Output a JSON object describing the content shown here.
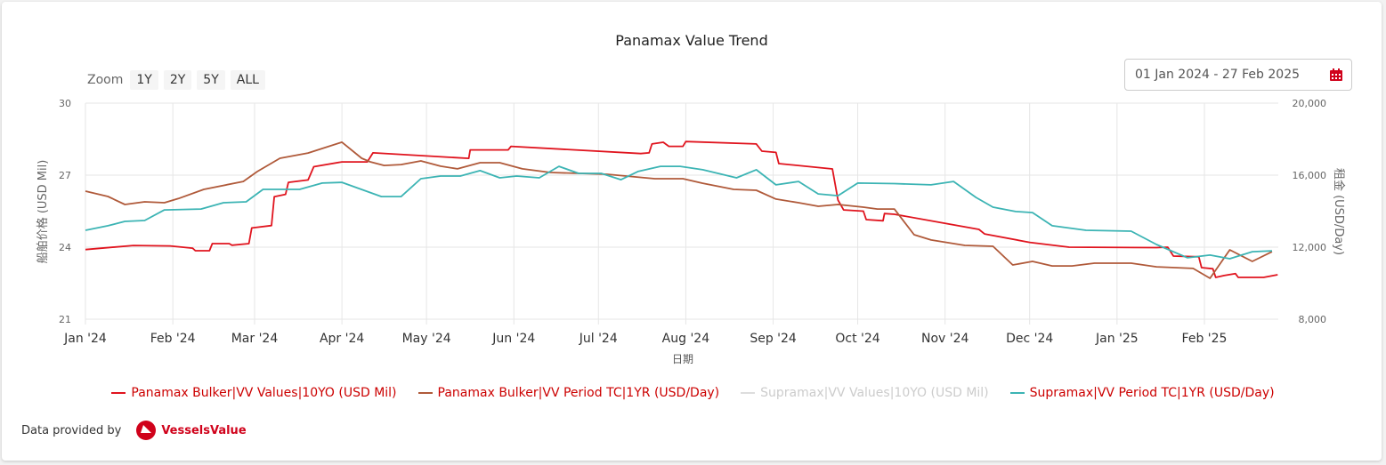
{
  "chart_data": {
    "type": "line",
    "title": "Panamax Value Trend",
    "xlabel": "日期",
    "ylabel_left": "船舶价格 (USD Mil)",
    "ylabel_right": "租金 (USD/Day)",
    "x_unit": "days since 01 Jan 2024",
    "xlim": [
      0,
      424
    ],
    "ylim_left": [
      21,
      30
    ],
    "ylim_right": [
      8000,
      20000
    ],
    "left_ticks": [
      "21",
      "24",
      "27",
      "30"
    ],
    "left_tick_values": [
      21,
      24,
      27,
      30
    ],
    "right_ticks": [
      "8,000",
      "12,000",
      "16,000",
      "20,000"
    ],
    "right_tick_values": [
      8000,
      12000,
      16000,
      20000
    ],
    "x_ticks": [
      "Jan '24",
      "Feb '24",
      "Mar '24",
      "Apr '24",
      "May '24",
      "Jun '24",
      "Jul '24",
      "Aug '24",
      "Sep '24",
      "Oct '24",
      "Nov '24",
      "Dec '24",
      "Jan '25",
      "Feb '25"
    ],
    "x_tick_values": [
      0,
      31,
      60,
      91,
      121,
      152,
      182,
      213,
      244,
      274,
      305,
      335,
      366,
      397
    ],
    "grid": true,
    "legend_position": "bottom",
    "series": [
      {
        "name": "Panamax Bulker|VV Values|10YO (USD Mil)",
        "axis": "left",
        "color": "#e0141e",
        "visible": true,
        "points": [
          [
            0,
            23.9
          ],
          [
            17,
            24.07
          ],
          [
            30,
            24.05
          ],
          [
            38,
            23.96
          ],
          [
            39,
            23.85
          ],
          [
            44,
            23.85
          ],
          [
            45,
            24.15
          ],
          [
            51,
            24.15
          ],
          [
            52,
            24.08
          ],
          [
            58,
            24.15
          ],
          [
            59,
            24.8
          ],
          [
            66,
            24.9
          ],
          [
            67,
            26.1
          ],
          [
            71,
            26.2
          ],
          [
            72,
            26.7
          ],
          [
            79,
            26.8
          ],
          [
            81,
            27.35
          ],
          [
            91,
            27.55
          ],
          [
            100,
            27.55
          ],
          [
            102,
            27.93
          ],
          [
            121,
            27.8
          ],
          [
            136,
            27.7
          ],
          [
            136.5,
            28.05
          ],
          [
            150,
            28.05
          ],
          [
            151,
            28.2
          ],
          [
            197,
            27.9
          ],
          [
            200,
            27.93
          ],
          [
            201,
            28.3
          ],
          [
            205,
            28.37
          ],
          [
            207,
            28.2
          ],
          [
            212,
            28.2
          ],
          [
            213,
            28.4
          ],
          [
            238,
            28.3
          ],
          [
            240,
            28.0
          ],
          [
            245,
            27.95
          ],
          [
            246,
            27.48
          ],
          [
            265,
            27.26
          ],
          [
            267,
            25.96
          ],
          [
            269,
            25.55
          ],
          [
            276,
            25.5
          ],
          [
            277,
            25.15
          ],
          [
            283,
            25.1
          ],
          [
            283.5,
            25.4
          ],
          [
            287,
            25.37
          ],
          [
            317,
            24.74
          ],
          [
            319,
            24.55
          ],
          [
            335,
            24.2
          ],
          [
            349,
            24.0
          ],
          [
            380,
            23.98
          ],
          [
            384,
            24.0
          ],
          [
            386,
            23.63
          ],
          [
            395,
            23.6
          ],
          [
            396,
            23.15
          ],
          [
            400,
            23.1
          ],
          [
            401,
            22.74
          ],
          [
            404,
            22.82
          ],
          [
            408,
            22.9
          ],
          [
            409,
            22.74
          ],
          [
            418,
            22.74
          ],
          [
            423,
            22.85
          ]
        ]
      },
      {
        "name": "Panamax Bulker|VV Period TC|1YR (USD/Day)",
        "axis": "right",
        "color": "#b05a3a",
        "visible": true,
        "points": [
          [
            0,
            15110
          ],
          [
            8,
            14815
          ],
          [
            14,
            14370
          ],
          [
            21,
            14520
          ],
          [
            28,
            14470
          ],
          [
            33,
            14700
          ],
          [
            42,
            15210
          ],
          [
            56,
            15650
          ],
          [
            61,
            16200
          ],
          [
            69,
            16940
          ],
          [
            79,
            17230
          ],
          [
            84,
            17480
          ],
          [
            91,
            17830
          ],
          [
            98,
            16940
          ],
          [
            101,
            16740
          ],
          [
            106,
            16540
          ],
          [
            112,
            16590
          ],
          [
            119,
            16790
          ],
          [
            126,
            16500
          ],
          [
            132,
            16350
          ],
          [
            140,
            16690
          ],
          [
            147,
            16690
          ],
          [
            155,
            16350
          ],
          [
            165,
            16150
          ],
          [
            185,
            16050
          ],
          [
            202,
            15800
          ],
          [
            212,
            15800
          ],
          [
            219,
            15550
          ],
          [
            230,
            15210
          ],
          [
            238,
            15160
          ],
          [
            245,
            14670
          ],
          [
            253,
            14470
          ],
          [
            260,
            14270
          ],
          [
            267,
            14370
          ],
          [
            276,
            14220
          ],
          [
            281,
            14120
          ],
          [
            287,
            14120
          ],
          [
            294,
            12690
          ],
          [
            300,
            12400
          ],
          [
            312,
            12100
          ],
          [
            322,
            12050
          ],
          [
            329,
            11010
          ],
          [
            336,
            11210
          ],
          [
            343,
            10960
          ],
          [
            350,
            10960
          ],
          [
            358,
            11110
          ],
          [
            371,
            11110
          ],
          [
            380,
            10910
          ],
          [
            393,
            10820
          ],
          [
            399,
            10270
          ],
          [
            406,
            11850
          ],
          [
            414,
            11210
          ],
          [
            421,
            11750
          ]
        ]
      },
      {
        "name": "Supramax|VV Values|10YO (USD Mil)",
        "axis": "left",
        "color": "#cccccc",
        "visible": false,
        "points": []
      },
      {
        "name": "Supramax|VV Period TC|1YR (USD/Day)",
        "axis": "right",
        "color": "#3cb4b4",
        "visible": true,
        "points": [
          [
            0,
            12940
          ],
          [
            8,
            13190
          ],
          [
            14,
            13430
          ],
          [
            21,
            13480
          ],
          [
            28,
            14070
          ],
          [
            41,
            14120
          ],
          [
            49,
            14470
          ],
          [
            57,
            14520
          ],
          [
            63,
            15210
          ],
          [
            76,
            15210
          ],
          [
            84,
            15560
          ],
          [
            91,
            15600
          ],
          [
            105,
            14810
          ],
          [
            112,
            14810
          ],
          [
            119,
            15800
          ],
          [
            126,
            15950
          ],
          [
            133,
            15950
          ],
          [
            140,
            16250
          ],
          [
            147,
            15850
          ],
          [
            153,
            15950
          ],
          [
            161,
            15850
          ],
          [
            168,
            16490
          ],
          [
            175,
            16100
          ],
          [
            183,
            16100
          ],
          [
            190,
            15750
          ],
          [
            196,
            16200
          ],
          [
            204,
            16490
          ],
          [
            211,
            16490
          ],
          [
            219,
            16300
          ],
          [
            231,
            15850
          ],
          [
            238,
            16300
          ],
          [
            245,
            15460
          ],
          [
            253,
            15650
          ],
          [
            260,
            14960
          ],
          [
            267,
            14860
          ],
          [
            274,
            15560
          ],
          [
            287,
            15530
          ],
          [
            300,
            15460
          ],
          [
            308,
            15650
          ],
          [
            316,
            14760
          ],
          [
            322,
            14220
          ],
          [
            330,
            13980
          ],
          [
            336,
            13920
          ],
          [
            343,
            13190
          ],
          [
            355,
            12940
          ],
          [
            371,
            12890
          ],
          [
            380,
            12150
          ],
          [
            391,
            11410
          ],
          [
            399,
            11560
          ],
          [
            406,
            11360
          ],
          [
            414,
            11750
          ],
          [
            421,
            11800
          ]
        ]
      }
    ]
  },
  "zoom": {
    "label": "Zoom",
    "buttons": [
      "1Y",
      "2Y",
      "5Y",
      "ALL"
    ]
  },
  "date_range": {
    "value": "01 Jan 2024 - 27 Feb 2025",
    "icon": "calendar-icon",
    "icon_color": "#d0021b"
  },
  "footer": {
    "label": "Data provided by",
    "brand": "VesselsValue",
    "brand_color": "#d0021b"
  }
}
